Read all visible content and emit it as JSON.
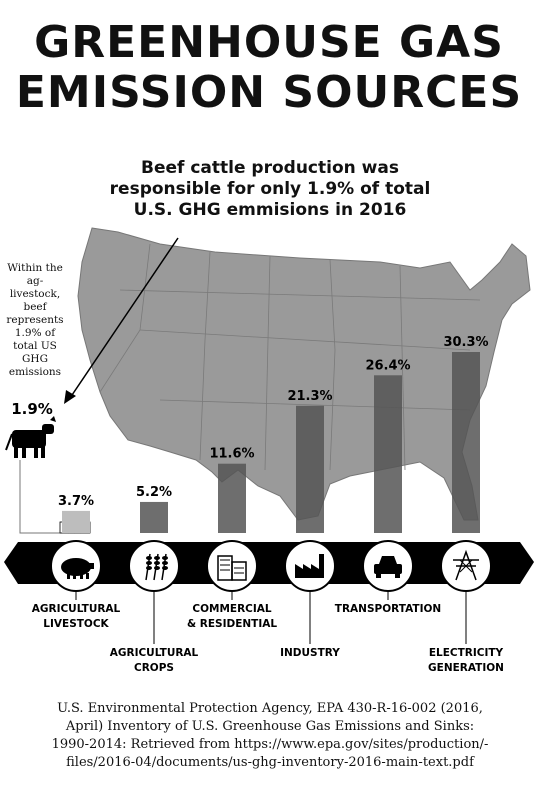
{
  "header": {
    "title_line1": "GREENHOUSE GAS",
    "title_line2": "EMISSION SOURCES"
  },
  "callout": {
    "headline": [
      "Beef cattle production was",
      "responsible for only 1.9% of  total",
      "U.S. GHG emmisions in 2016"
    ],
    "side_note": [
      "Within the",
      "ag-livestock,",
      "beef",
      "represents",
      "1.9% of",
      "total US",
      "GHG",
      "emissions"
    ],
    "beef_value": "1.9%"
  },
  "chart_data": {
    "type": "bar",
    "categories": [
      "AGRICULTURAL LIVESTOCK",
      "AGRICULTURAL CROPS",
      "COMMERCIAL & RESIDENTIAL",
      "INDUSTRY",
      "TRANSPORTATION",
      "ELECTRICITY GENERATION"
    ],
    "values": [
      3.7,
      5.2,
      11.6,
      21.3,
      26.4,
      30.3
    ],
    "value_labels": [
      "3.7%",
      "5.2%",
      "11.6%",
      "21.3%",
      "26.4%",
      "30.3%"
    ],
    "category_label_lines": [
      [
        "AGRICULTURAL",
        "LIVESTOCK"
      ],
      [
        "AGRICULTURAL",
        "CROPS"
      ],
      [
        "COMMERCIAL",
        "& RESIDENTIAL"
      ],
      [
        "INDUSTRY"
      ],
      [
        "TRANSPORTATION"
      ],
      [
        "ELECTRICITY",
        "GENERATION"
      ]
    ],
    "category_icons": [
      "pig-icon",
      "wheat-icon",
      "building-icon",
      "factory-icon",
      "car-icon",
      "power-tower-icon"
    ],
    "highlight": {
      "label": "1.9%",
      "value": 1.9,
      "icon": "cow-icon"
    },
    "title": "",
    "xlabel": "",
    "ylabel": "",
    "ylim": [
      0,
      30.3
    ],
    "grid": false,
    "legend": "none",
    "colors": {
      "bar": "#555555",
      "map": "#999999",
      "band": "#000000",
      "background": "#ffffff"
    }
  },
  "footer": {
    "citation_lines": [
      "U.S. Environmental Protection Agency, EPA 430-R-16-002 (2016,",
      "April) Inventory of U.S. Greenhouse Gas Emissions and Sinks:",
      "1990-2014: Retrieved from https://www.epa.gov/sites/production/-",
      "files/2016-04/documents/us-ghg-inventory-2016-main-text.pdf"
    ]
  }
}
